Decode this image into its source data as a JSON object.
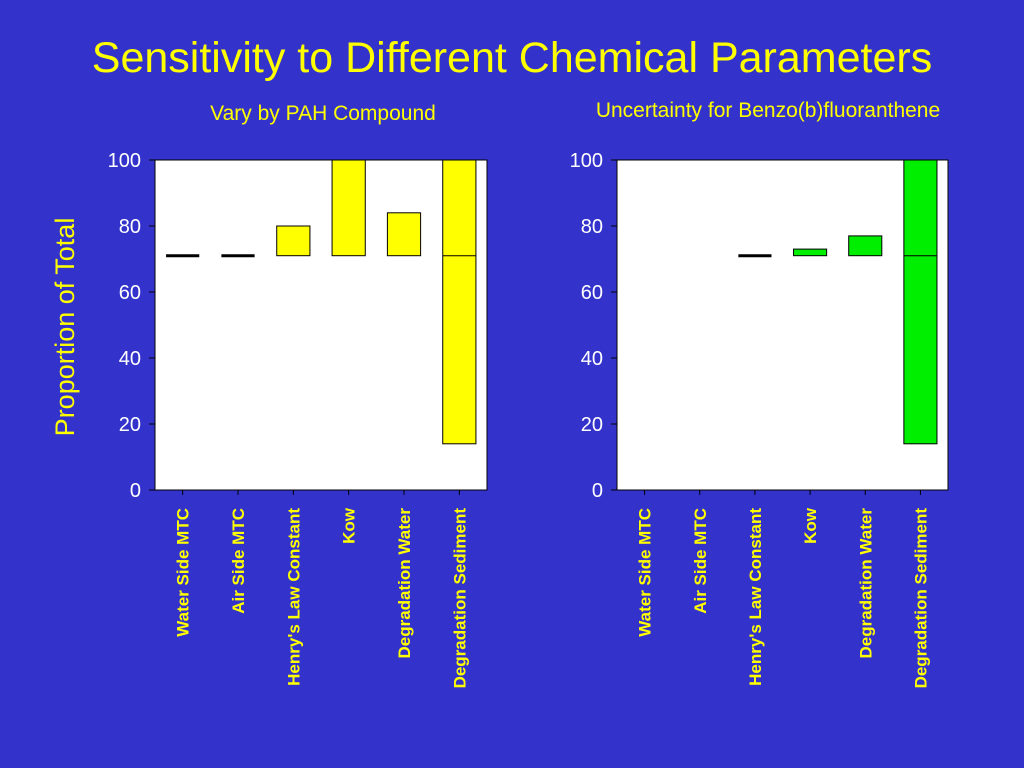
{
  "slide": {
    "title": "Sensitivity to Different Chemical Parameters",
    "y_axis_title": "Proportion of Total"
  },
  "chart_data": [
    {
      "type": "bar",
      "subtitle": "Vary by PAH Compound",
      "categories": [
        "Water Side MTC",
        "Air Side MTC",
        "Henry's Law Constant",
        "Kow",
        "Degradation Water",
        "Degradation Sediment"
      ],
      "ylim": [
        0,
        100
      ],
      "yticks": [
        0,
        20,
        40,
        60,
        80,
        100
      ],
      "baseline": 71,
      "bars": [
        {
          "category": "Water Side MTC",
          "low": 71,
          "high": 71
        },
        {
          "category": "Air Side MTC",
          "low": 71,
          "high": 71
        },
        {
          "category": "Henry's Law Constant",
          "low": 71,
          "high": 80
        },
        {
          "category": "Kow",
          "low": 71,
          "high": 100
        },
        {
          "category": "Degradation Water",
          "low": 71,
          "high": 84
        },
        {
          "category": "Degradation Sediment",
          "low": 14,
          "high": 100
        }
      ],
      "bar_color": "#ffff00",
      "grid": false
    },
    {
      "type": "bar",
      "subtitle": "Uncertainty for Benzo(b)fluoranthene",
      "categories": [
        "Water Side MTC",
        "Air Side MTC",
        "Henry's Law Constant",
        "Kow",
        "Degradation Water",
        "Degradation Sediment"
      ],
      "ylim": [
        0,
        100
      ],
      "yticks": [
        0,
        20,
        40,
        60,
        80,
        100
      ],
      "baseline": 71,
      "bars": [
        {
          "category": "Water Side MTC",
          "low": null,
          "high": null
        },
        {
          "category": "Air Side MTC",
          "low": null,
          "high": null
        },
        {
          "category": "Henry's Law Constant",
          "low": 71,
          "high": 71
        },
        {
          "category": "Kow",
          "low": 71,
          "high": 73
        },
        {
          "category": "Degradation Water",
          "low": 71,
          "high": 77
        },
        {
          "category": "Degradation Sediment",
          "low": 14,
          "high": 100
        }
      ],
      "bar_color": "#00ee00",
      "grid": false
    }
  ]
}
